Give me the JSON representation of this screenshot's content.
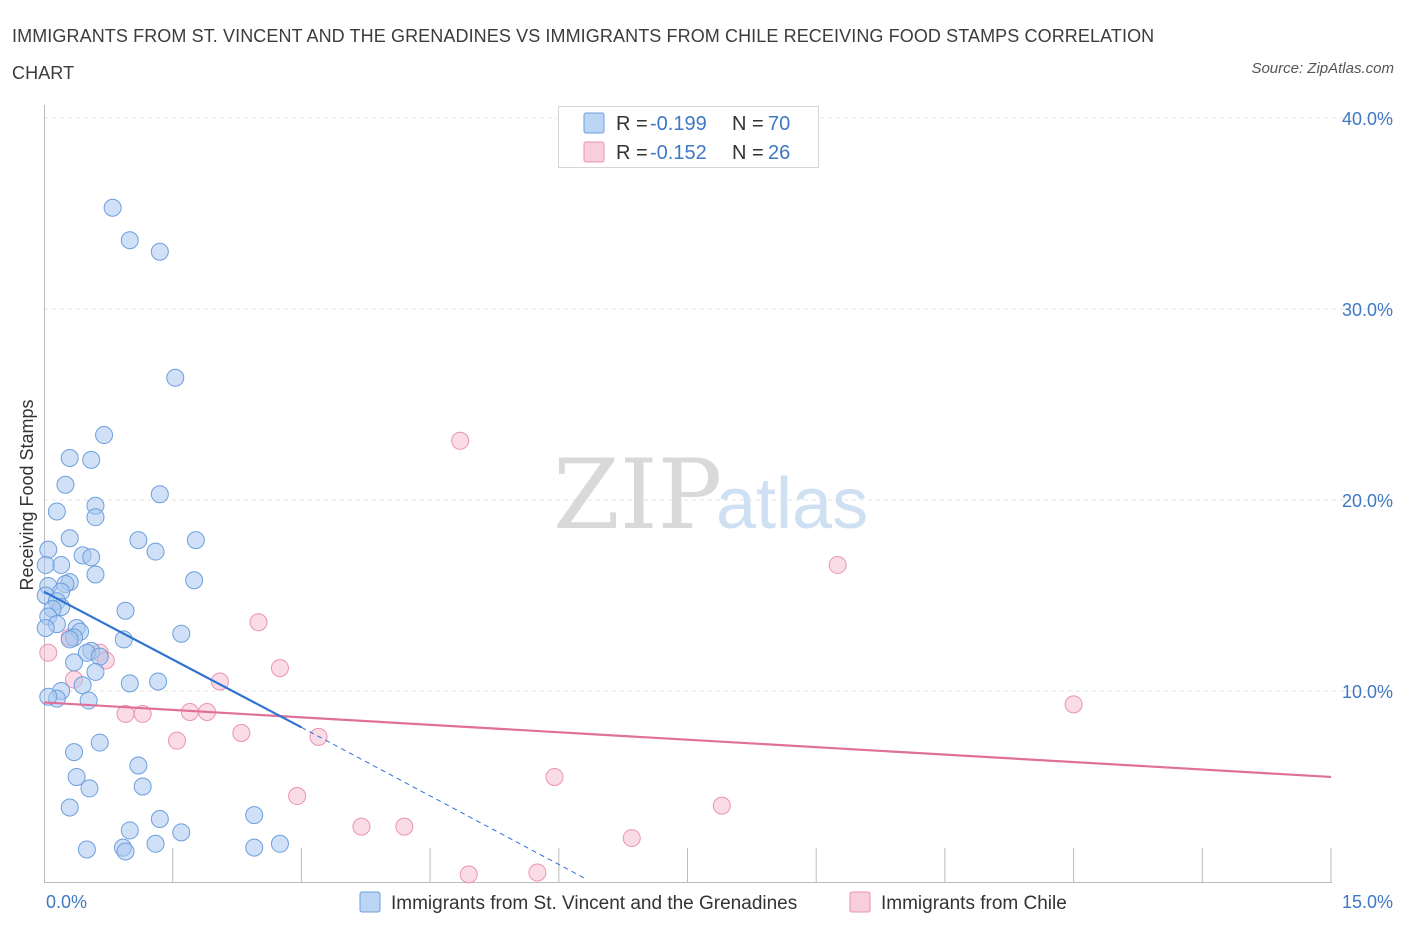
{
  "title": "IMMIGRANTS FROM ST. VINCENT AND THE GRENADINES VS IMMIGRANTS FROM CHILE RECEIVING FOOD STAMPS CORRELATION CHART",
  "source": "Source: ZipAtlas.com",
  "watermark": {
    "zip": "ZIP",
    "atlas": "atlas"
  },
  "colors": {
    "blue": "#a9c8f0",
    "blue_stroke": "#6d9fdc",
    "blue_line": "#2e72d2",
    "pink": "#f6bfd1",
    "pink_stroke": "#ec93b0",
    "pink_line": "#e0709a",
    "tick": "#3f78c4",
    "grid": "#e3e3e3"
  },
  "legend": {
    "rows": [
      {
        "r_label": "R = ",
        "r_value": "-0.199",
        "n_label": "N = ",
        "n_value": "70"
      },
      {
        "r_label": "R = ",
        "r_value": "-0.152",
        "n_label": "N = ",
        "n_value": "26"
      }
    ]
  },
  "chart_data": {
    "type": "scatter",
    "title": "IMMIGRANTS FROM ST. VINCENT AND THE GRENADINES VS IMMIGRANTS FROM CHILE RECEIVING FOOD STAMPS CORRELATION CHART",
    "ylabel": "Receiving Food Stamps",
    "xlabel": "",
    "xlim": [
      0,
      15
    ],
    "ylim": [
      0,
      40
    ],
    "x_tick_labels": [
      "0.0%",
      "15.0%"
    ],
    "y_ticks": [
      10,
      20,
      30,
      40
    ],
    "y_tick_labels": [
      "10.0%",
      "20.0%",
      "30.0%",
      "40.0%"
    ],
    "grid": true,
    "legend_position": "top-center",
    "series": [
      {
        "name": "Immigrants from St. Vincent and the Grenadines",
        "color": "#a9c8f0",
        "r": -0.199,
        "n": 70,
        "trend": {
          "x": [
            0.0,
            3.0
          ],
          "y": [
            15.2,
            8.1
          ]
        },
        "trend_extension": {
          "x": [
            3.0,
            6.3
          ],
          "y": [
            8.1,
            0.2
          ]
        },
        "points": [
          [
            0.8,
            35.3
          ],
          [
            1.0,
            33.6
          ],
          [
            1.35,
            33.0
          ],
          [
            1.53,
            26.4
          ],
          [
            0.7,
            23.4
          ],
          [
            0.55,
            22.1
          ],
          [
            0.3,
            22.2
          ],
          [
            0.25,
            20.8
          ],
          [
            1.35,
            20.3
          ],
          [
            0.6,
            19.7
          ],
          [
            0.15,
            19.4
          ],
          [
            0.6,
            19.1
          ],
          [
            0.3,
            18.0
          ],
          [
            1.1,
            17.9
          ],
          [
            1.77,
            17.9
          ],
          [
            0.05,
            17.4
          ],
          [
            1.3,
            17.3
          ],
          [
            0.45,
            17.1
          ],
          [
            0.55,
            17.0
          ],
          [
            0.2,
            16.6
          ],
          [
            0.02,
            16.6
          ],
          [
            0.6,
            16.1
          ],
          [
            1.75,
            15.8
          ],
          [
            0.3,
            15.7
          ],
          [
            0.25,
            15.6
          ],
          [
            0.05,
            15.5
          ],
          [
            0.2,
            15.2
          ],
          [
            0.02,
            15.0
          ],
          [
            0.15,
            14.7
          ],
          [
            0.2,
            14.4
          ],
          [
            0.1,
            14.3
          ],
          [
            0.95,
            14.2
          ],
          [
            0.05,
            13.9
          ],
          [
            0.15,
            13.5
          ],
          [
            0.02,
            13.3
          ],
          [
            0.38,
            13.3
          ],
          [
            0.42,
            13.1
          ],
          [
            1.6,
            13.0
          ],
          [
            0.35,
            12.8
          ],
          [
            0.3,
            12.7
          ],
          [
            0.93,
            12.7
          ],
          [
            0.55,
            12.1
          ],
          [
            0.5,
            12.0
          ],
          [
            0.65,
            11.8
          ],
          [
            0.35,
            11.5
          ],
          [
            0.6,
            11.0
          ],
          [
            1.0,
            10.4
          ],
          [
            1.33,
            10.5
          ],
          [
            0.45,
            10.3
          ],
          [
            0.2,
            10.0
          ],
          [
            0.15,
            9.6
          ],
          [
            0.05,
            9.7
          ],
          [
            0.52,
            9.5
          ],
          [
            0.65,
            7.3
          ],
          [
            0.35,
            6.8
          ],
          [
            1.1,
            6.1
          ],
          [
            0.38,
            5.5
          ],
          [
            0.53,
            4.9
          ],
          [
            1.15,
            5.0
          ],
          [
            0.3,
            3.9
          ],
          [
            1.35,
            3.3
          ],
          [
            2.45,
            3.5
          ],
          [
            1.0,
            2.7
          ],
          [
            1.6,
            2.6
          ],
          [
            1.3,
            2.0
          ],
          [
            2.75,
            2.0
          ],
          [
            0.5,
            1.7
          ],
          [
            0.92,
            1.8
          ],
          [
            2.45,
            1.8
          ],
          [
            0.95,
            1.6
          ]
        ]
      },
      {
        "name": "Immigrants from Chile",
        "color": "#f6bfd1",
        "r": -0.152,
        "n": 26,
        "trend": {
          "x": [
            0.0,
            15.0
          ],
          "y": [
            9.4,
            5.5
          ]
        },
        "points": [
          [
            0.05,
            12.0
          ],
          [
            4.85,
            23.1
          ],
          [
            9.25,
            16.6
          ],
          [
            2.5,
            13.6
          ],
          [
            2.75,
            11.2
          ],
          [
            2.05,
            10.5
          ],
          [
            0.65,
            12.0
          ],
          [
            0.72,
            11.6
          ],
          [
            0.35,
            10.6
          ],
          [
            0.3,
            12.8
          ],
          [
            0.95,
            8.8
          ],
          [
            1.15,
            8.8
          ],
          [
            1.7,
            8.9
          ],
          [
            1.9,
            8.9
          ],
          [
            12.0,
            9.3
          ],
          [
            2.3,
            7.8
          ],
          [
            3.2,
            7.6
          ],
          [
            1.55,
            7.4
          ],
          [
            5.95,
            5.5
          ],
          [
            2.95,
            4.5
          ],
          [
            7.9,
            4.0
          ],
          [
            3.7,
            2.9
          ],
          [
            4.2,
            2.9
          ],
          [
            6.85,
            2.3
          ],
          [
            4.95,
            0.4
          ],
          [
            5.75,
            0.5
          ]
        ]
      }
    ]
  }
}
